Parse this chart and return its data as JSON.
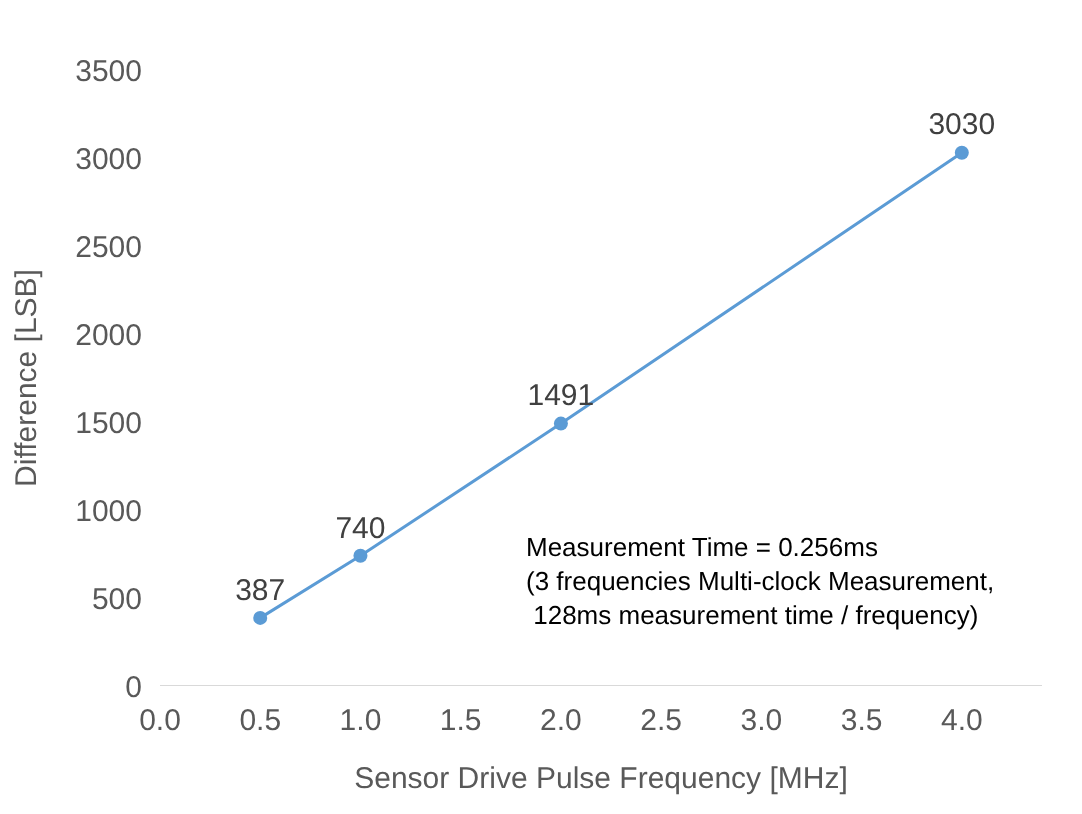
{
  "chart_data": {
    "type": "line",
    "xlabel": "Sensor Drive Pulse Frequency [MHz]",
    "ylabel": "Difference [LSB]",
    "x": [
      0.5,
      1.0,
      2.0,
      4.0
    ],
    "series": [
      {
        "color": "#5b9bd5",
        "values": [
          387,
          740,
          1491,
          3030
        ]
      }
    ],
    "xlim": [
      0,
      4.4
    ],
    "xticks": [
      {
        "value": 0,
        "label": "0.0"
      },
      {
        "value": 0.5,
        "label": "0.5"
      },
      {
        "value": 1,
        "label": "1.0"
      },
      {
        "value": 1.5,
        "label": "1.5"
      },
      {
        "value": 2,
        "label": "2.0"
      },
      {
        "value": 2.5,
        "label": "2.5"
      },
      {
        "value": 3,
        "label": "3.0"
      },
      {
        "value": 3.5,
        "label": "3.5"
      },
      {
        "value": 4,
        "label": "4.0"
      }
    ],
    "ylim": [
      0,
      3500
    ],
    "yticks": [
      0,
      500,
      1000,
      1500,
      2000,
      2500,
      3000,
      3500
    ],
    "annotations": [
      "Measurement Time = 0.256ms\n(3 frequencies Multi-clock Measurement,\n 128ms measurement time / frequency)"
    ],
    "data_labels": true,
    "marker": "circle",
    "line_style": "solid",
    "legend": false
  }
}
